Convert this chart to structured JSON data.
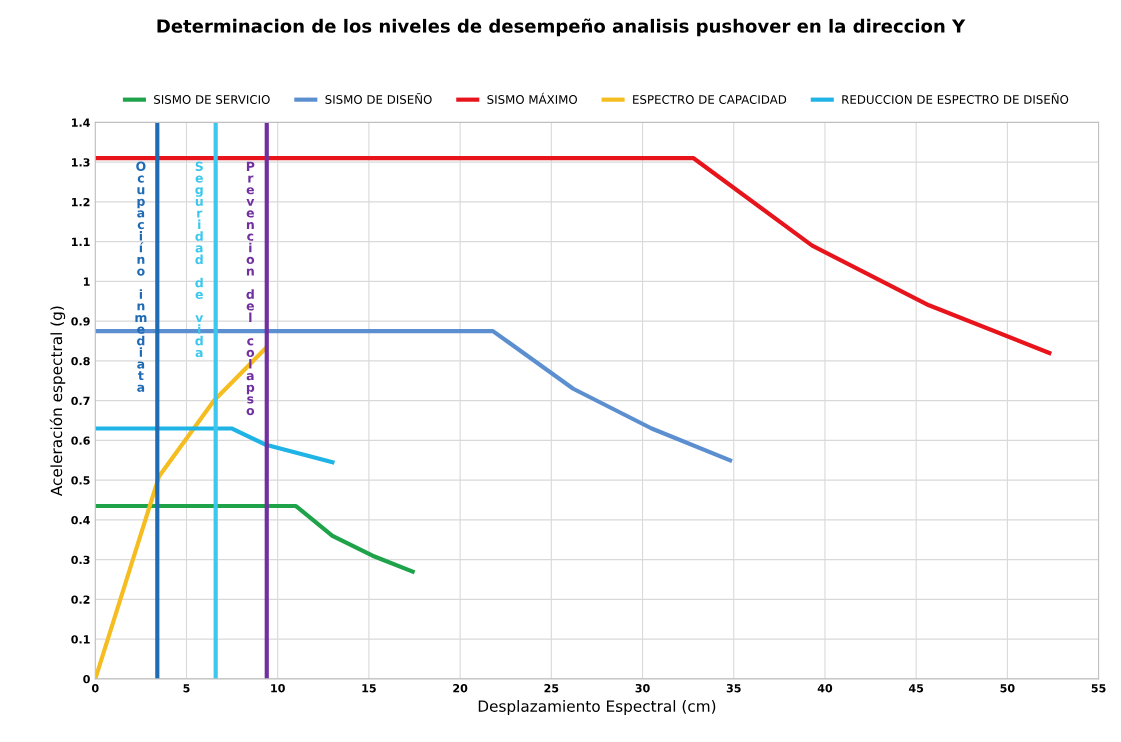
{
  "chart_data": {
    "type": "line",
    "title": "Determinacion de los niveles de desempeño analisis pushover en la direccion Y",
    "xlabel": "Desplazamiento Espectral (cm)",
    "ylabel": "Aceleración espectral (g)",
    "series": [
      {
        "name": "SISMO DE SERVICIO",
        "color": "#1ea34a",
        "x": [
          0,
          11.0,
          13.0,
          15.2,
          17.4
        ],
        "values": [
          0.435,
          0.435,
          0.36,
          0.31,
          0.27
        ]
      },
      {
        "name": "SISMO DE DISEÑO",
        "color": "#5b8fd0",
        "x": [
          0,
          21.8,
          26.2,
          30.5,
          34.8
        ],
        "values": [
          0.875,
          0.875,
          0.73,
          0.63,
          0.55
        ]
      },
      {
        "name": "SISMO MÁXIMO",
        "color": "#e8141c",
        "x": [
          0,
          32.8,
          39.3,
          45.7,
          52.3
        ],
        "values": [
          1.31,
          1.31,
          1.09,
          0.94,
          0.82
        ]
      },
      {
        "name": "ESPECTRO DE CAPACIDAD",
        "color": "#f5bd1f",
        "x": [
          0,
          3.5,
          6.5,
          9.3
        ],
        "values": [
          0,
          0.51,
          0.7,
          0.83
        ]
      },
      {
        "name": "REDUCCION DE ESPECTRO DE DISEÑO",
        "color": "#1fb3e6",
        "x": [
          0,
          7.5,
          9.3,
          13.0
        ],
        "values": [
          0.63,
          0.63,
          0.59,
          0.545
        ]
      }
    ],
    "ref_lines": [
      {
        "axis": "x",
        "value": 3.4,
        "label": "Ocupaciíno inmediata",
        "color": "#1f6cb5"
      },
      {
        "axis": "x",
        "value": 6.6,
        "label": "Seguridad de vida",
        "color": "#3cc8ee"
      },
      {
        "axis": "x",
        "value": 9.4,
        "label": "Prevencion del colapso",
        "color": "#7030a0"
      }
    ],
    "xlim": [
      0,
      55
    ],
    "xticks": [
      0,
      5,
      10,
      15,
      20,
      25,
      30,
      35,
      40,
      45,
      50,
      55
    ],
    "ylim": [
      0,
      1.4
    ],
    "yticks": [
      0,
      0.1,
      0.2,
      0.3,
      0.4,
      0.5,
      0.6,
      0.7,
      0.8,
      0.9,
      1,
      1.1,
      1.2,
      1.3,
      1.4
    ],
    "grid": true,
    "legend": "top",
    "marker": "none",
    "line_style": "solid"
  }
}
